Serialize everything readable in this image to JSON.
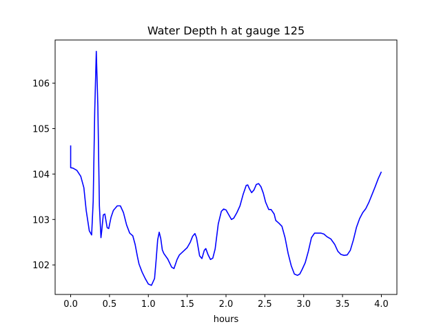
{
  "chart_data": {
    "type": "line",
    "title": "Water Depth h at gauge 125",
    "xlabel": "hours",
    "ylabel": "",
    "xlim": [
      -0.2,
      4.2
    ],
    "ylim": [
      101.35,
      106.95
    ],
    "xticks": [
      0.0,
      0.5,
      1.0,
      1.5,
      2.0,
      2.5,
      3.0,
      3.5,
      4.0
    ],
    "xtick_labels": [
      "0.0",
      "0.5",
      "1.0",
      "1.5",
      "2.0",
      "2.5",
      "3.0",
      "3.5",
      "4.0"
    ],
    "yticks": [
      102,
      103,
      104,
      105,
      106
    ],
    "ytick_labels": [
      "102",
      "103",
      "104",
      "105",
      "106"
    ],
    "grid": false,
    "series": [
      {
        "color": "#0000ff",
        "x": [
          0.0,
          0.0,
          0.03,
          0.08,
          0.13,
          0.17,
          0.2,
          0.24,
          0.27,
          0.29,
          0.31,
          0.33,
          0.35,
          0.37,
          0.39,
          0.4,
          0.42,
          0.44,
          0.47,
          0.49,
          0.52,
          0.55,
          0.6,
          0.64,
          0.68,
          0.72,
          0.76,
          0.8,
          0.83,
          0.86,
          0.88,
          0.92,
          0.96,
          1.0,
          1.04,
          1.08,
          1.1,
          1.12,
          1.14,
          1.16,
          1.18,
          1.2,
          1.25,
          1.3,
          1.33,
          1.37,
          1.4,
          1.45,
          1.5,
          1.54,
          1.57,
          1.6,
          1.62,
          1.66,
          1.69,
          1.72,
          1.74,
          1.77,
          1.8,
          1.83,
          1.86,
          1.9,
          1.94,
          1.97,
          2.0,
          2.03,
          2.07,
          2.1,
          2.14,
          2.18,
          2.22,
          2.26,
          2.28,
          2.3,
          2.33,
          2.36,
          2.39,
          2.42,
          2.45,
          2.48,
          2.51,
          2.55,
          2.58,
          2.62,
          2.64,
          2.68,
          2.72,
          2.76,
          2.8,
          2.84,
          2.88,
          2.92,
          2.95,
          2.98,
          3.02,
          3.06,
          3.1,
          3.14,
          3.18,
          3.22,
          3.26,
          3.3,
          3.35,
          3.4,
          3.44,
          3.48,
          3.52,
          3.56,
          3.6,
          3.64,
          3.68,
          3.72,
          3.76,
          3.8,
          3.84,
          3.88,
          3.92,
          3.96,
          4.0
        ],
        "values": [
          104.63,
          104.14,
          104.13,
          104.08,
          103.95,
          103.7,
          103.2,
          102.75,
          102.66,
          103.4,
          105.4,
          106.7,
          105.5,
          103.3,
          102.6,
          102.75,
          103.1,
          103.12,
          102.82,
          102.8,
          103.05,
          103.2,
          103.3,
          103.3,
          103.15,
          102.88,
          102.7,
          102.64,
          102.45,
          102.18,
          102.02,
          101.84,
          101.7,
          101.58,
          101.55,
          101.7,
          102.1,
          102.55,
          102.72,
          102.58,
          102.33,
          102.25,
          102.13,
          101.95,
          101.92,
          102.12,
          102.22,
          102.3,
          102.38,
          102.5,
          102.63,
          102.69,
          102.6,
          102.2,
          102.14,
          102.32,
          102.36,
          102.22,
          102.12,
          102.15,
          102.35,
          102.9,
          103.18,
          103.23,
          103.21,
          103.12,
          103.0,
          103.03,
          103.15,
          103.3,
          103.55,
          103.75,
          103.76,
          103.68,
          103.59,
          103.65,
          103.77,
          103.79,
          103.72,
          103.58,
          103.38,
          103.22,
          103.22,
          103.12,
          102.98,
          102.92,
          102.85,
          102.6,
          102.25,
          101.98,
          101.8,
          101.77,
          101.8,
          101.9,
          102.05,
          102.3,
          102.6,
          102.7,
          102.7,
          102.7,
          102.68,
          102.62,
          102.57,
          102.45,
          102.3,
          102.23,
          102.21,
          102.22,
          102.32,
          102.55,
          102.83,
          103.02,
          103.15,
          103.24,
          103.38,
          103.55,
          103.72,
          103.9,
          104.05
        ]
      }
    ]
  }
}
